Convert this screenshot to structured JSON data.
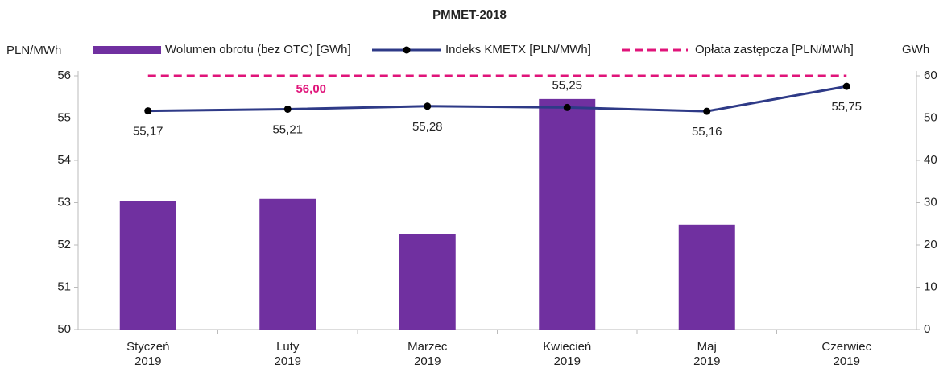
{
  "chart_data": {
    "type": "combo",
    "title": "PMMET-2018",
    "y_label": "PLN/MWh",
    "y2_label": "GWh",
    "categories": [
      [
        "Styczeń",
        "2019"
      ],
      [
        "Luty",
        "2019"
      ],
      [
        "Marzec",
        "2019"
      ],
      [
        "Kwiecień",
        "2019"
      ],
      [
        "Maj",
        "2019"
      ],
      [
        "Czerwiec",
        "2019"
      ]
    ],
    "ylim": [
      50,
      56
    ],
    "yticks": [
      50,
      51,
      52,
      53,
      54,
      55,
      56
    ],
    "y2lim": [
      0,
      60
    ],
    "y2ticks": [
      0,
      10,
      20,
      30,
      40,
      50,
      60
    ],
    "grid": false,
    "series": [
      {
        "name": "Wolumen obrotu (bez OTC) [GWh]",
        "type": "bar",
        "axis": "y2",
        "color": "#7030a0",
        "values": [
          30.3,
          30.9,
          22.5,
          54.5,
          24.8,
          null
        ]
      },
      {
        "name": "Indeks KMETX [PLN/MWh]",
        "type": "line",
        "color": "#2e3a87",
        "values": [
          55.17,
          55.21,
          55.28,
          55.25,
          55.16,
          55.75
        ],
        "value_labels": [
          "55,17",
          "55,21",
          "55,28",
          "55,25",
          "55,16",
          "55,75"
        ]
      },
      {
        "name": "Opłata zastępcza [PLN/MWh]",
        "type": "dashed",
        "color": "#e0147a",
        "values": [
          56,
          56,
          56,
          56,
          56,
          56
        ],
        "value_labels": [
          null,
          "56,00",
          null,
          null,
          null,
          null
        ]
      }
    ]
  }
}
